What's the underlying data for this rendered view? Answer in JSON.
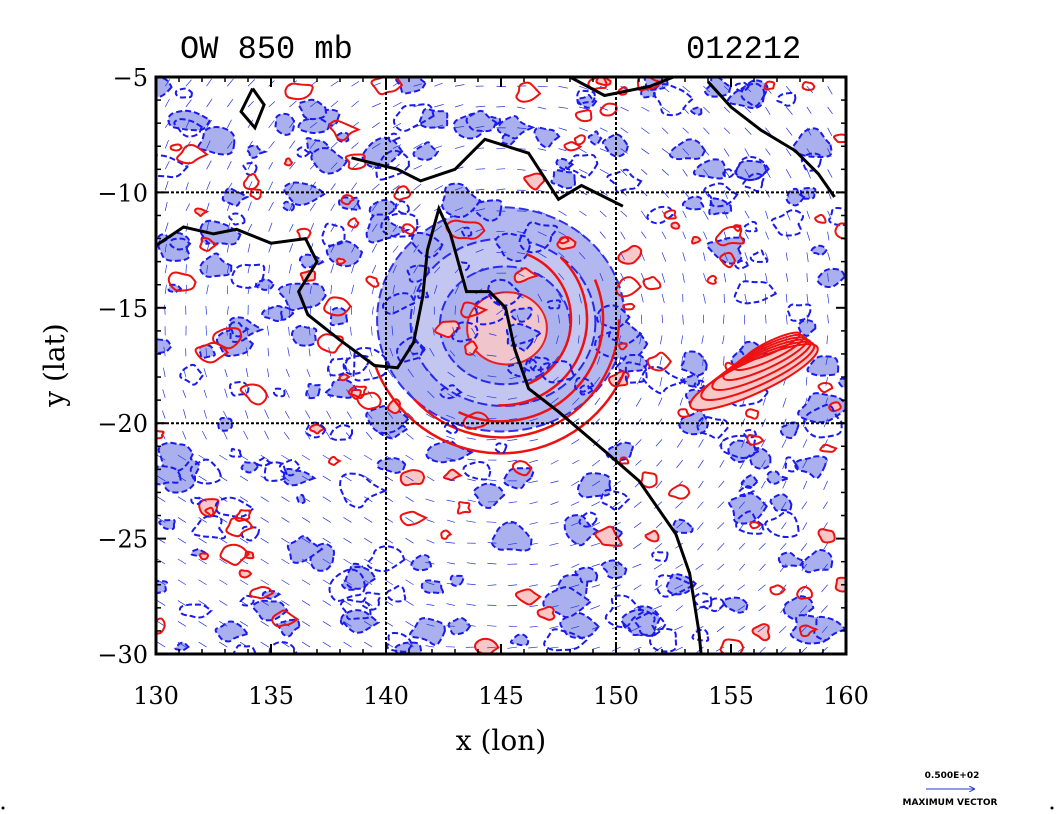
{
  "chart_data": {
    "type": "contour_vector_map",
    "title_left": "OW 850 mb",
    "title_right": "012212",
    "xlabel": "x (lon)",
    "ylabel": "y (lat)",
    "xlim": [
      130,
      160
    ],
    "ylim": [
      -30,
      -5
    ],
    "xticks": [
      130,
      135,
      140,
      145,
      150,
      155,
      160
    ],
    "yticks": [
      -5,
      -10,
      -15,
      -20,
      -25,
      -30
    ],
    "xtick_labels": [
      "130",
      "135",
      "140",
      "145",
      "150",
      "155",
      "160"
    ],
    "ytick_labels": [
      "−5",
      "−10",
      "−15",
      "−20",
      "−25",
      "−30"
    ],
    "gridlines_x": [
      140,
      150
    ],
    "gridlines_y": [
      -10,
      -20
    ],
    "grid": true,
    "colors": {
      "negative_fill": "#aab0ee",
      "negative_line": "#1a1aee",
      "positive_fill": "#f8c8c8",
      "positive_line": "#ee1111",
      "coast": "#000000",
      "vector": "#2233dd"
    },
    "features": [
      {
        "name": "circulation center",
        "lon": 145,
        "lat": -15.5
      },
      {
        "name": "positive OW band",
        "lon": 156,
        "lat": -18
      }
    ],
    "coastline": [
      [
        [
          130,
          -12.3
        ],
        [
          131.2,
          -11.5
        ],
        [
          132.5,
          -11.8
        ],
        [
          133.5,
          -11.6
        ],
        [
          135,
          -12.2
        ],
        [
          136.5,
          -12.0
        ],
        [
          137,
          -13
        ],
        [
          136.2,
          -14.3
        ],
        [
          136.6,
          -15.3
        ],
        [
          138,
          -16.4
        ],
        [
          139.5,
          -17.5
        ],
        [
          140.5,
          -17.6
        ],
        [
          141.2,
          -16.5
        ],
        [
          141.6,
          -14.5
        ],
        [
          141.8,
          -12.5
        ],
        [
          142.3,
          -10.7
        ],
        [
          142.8,
          -11.8
        ],
        [
          143.5,
          -14.3
        ],
        [
          144.5,
          -14.3
        ],
        [
          145.2,
          -15.0
        ],
        [
          145.6,
          -16.8
        ],
        [
          146.2,
          -18.5
        ],
        [
          147.5,
          -19.5
        ],
        [
          149.5,
          -21.2
        ],
        [
          151,
          -22.5
        ],
        [
          152.6,
          -24.8
        ],
        [
          153.2,
          -26.5
        ],
        [
          153.6,
          -29
        ],
        [
          153.7,
          -30
        ]
      ],
      [
        [
          138.5,
          -8.5
        ],
        [
          140.5,
          -9.0
        ],
        [
          141.5,
          -9.5
        ],
        [
          143,
          -9.0
        ],
        [
          144.3,
          -7.7
        ],
        [
          146.2,
          -8.3
        ],
        [
          147.5,
          -10.3
        ],
        [
          148.5,
          -9.7
        ],
        [
          149.5,
          -10.2
        ],
        [
          150.3,
          -10.6
        ]
      ],
      [
        [
          134.2,
          -5.5
        ],
        [
          133.7,
          -6.5
        ],
        [
          134.3,
          -7.2
        ],
        [
          134.7,
          -6.2
        ],
        [
          134.2,
          -5.5
        ]
      ],
      [
        [
          148,
          -5
        ],
        [
          149.5,
          -5.8
        ],
        [
          151.5,
          -5.4
        ],
        [
          152.5,
          -5
        ]
      ],
      [
        [
          154,
          -5.2
        ],
        [
          155,
          -6.3
        ],
        [
          156.3,
          -7.3
        ],
        [
          157.8,
          -8.2
        ],
        [
          158.8,
          -9.2
        ],
        [
          159.5,
          -10.2
        ]
      ]
    ],
    "legend": {
      "value_text": "0.500E+02",
      "label_text": "MAXIMUM VECTOR"
    }
  }
}
